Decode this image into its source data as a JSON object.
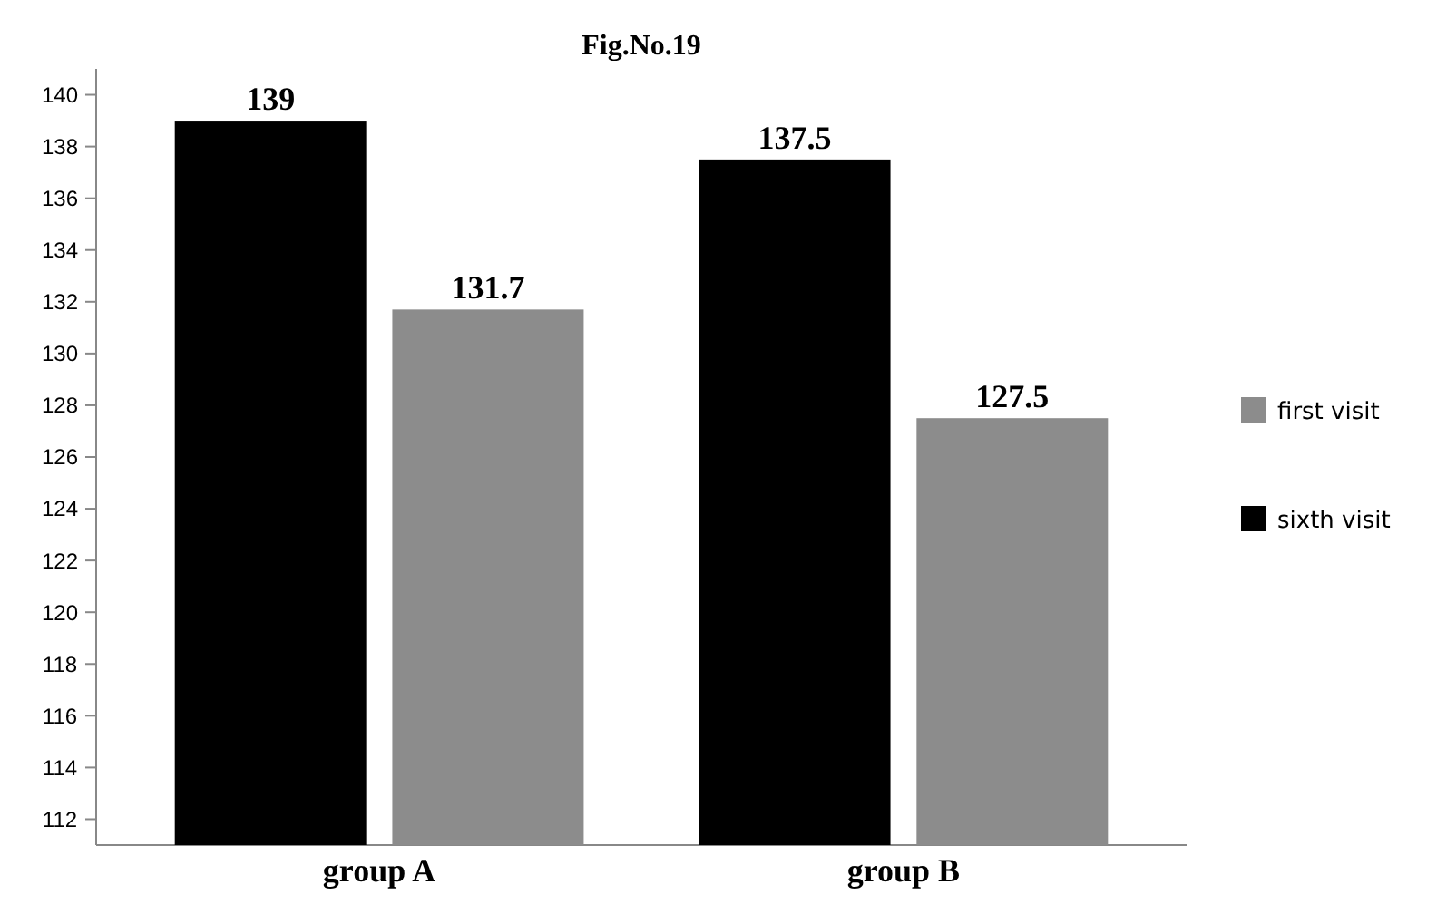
{
  "chart_data": {
    "type": "bar",
    "title": "Fig.No.19",
    "categories": [
      "group A",
      "group B"
    ],
    "series": [
      {
        "name": "sixth visit",
        "color": "#000000",
        "values": [
          139,
          137.5
        ]
      },
      {
        "name": "first visit",
        "color": "#8c8c8c",
        "values": [
          131.7,
          127.5
        ]
      }
    ],
    "ylim": [
      111,
      141
    ],
    "yticks": [
      112,
      114,
      116,
      118,
      120,
      122,
      124,
      126,
      128,
      130,
      132,
      134,
      136,
      138,
      140
    ],
    "data_labels": true,
    "legend": "right"
  }
}
